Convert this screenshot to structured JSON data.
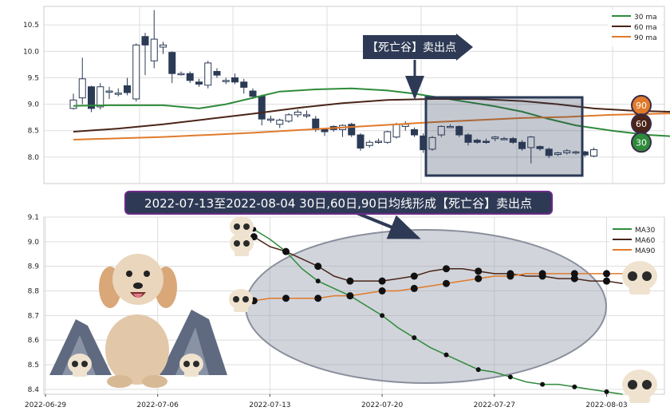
{
  "chart_data": [
    {
      "type": "candlestick",
      "ylim": [
        7.5,
        10.85
      ],
      "y_ticks": [
        "8.0",
        "8.5",
        "9.0",
        "9.5",
        "10.0",
        "10.5"
      ],
      "legend": {
        "placement": "top-right",
        "entries": [
          "30 ma",
          "60 ma",
          "90 ma"
        ]
      },
      "grid": true,
      "candles": [
        [
          8.92,
          9.08,
          8.9,
          9.2
        ],
        [
          9.12,
          9.48,
          9.0,
          9.88
        ],
        [
          9.33,
          8.92,
          8.85,
          9.35
        ],
        [
          8.95,
          9.33,
          8.9,
          9.4
        ],
        [
          9.25,
          9.25,
          9.1,
          9.33
        ],
        [
          9.21,
          9.21,
          9.15,
          9.3
        ],
        [
          9.35,
          9.22,
          9.17,
          9.5
        ],
        [
          9.1,
          10.12,
          9.05,
          10.15
        ],
        [
          10.28,
          10.12,
          9.55,
          10.35
        ],
        [
          9.82,
          10.23,
          9.68,
          10.78
        ],
        [
          10.08,
          10.12,
          9.95,
          10.18
        ],
        [
          9.98,
          9.58,
          9.4,
          10.0
        ],
        [
          9.58,
          9.58,
          9.54,
          9.62
        ],
        [
          9.58,
          9.45,
          9.4,
          9.62
        ],
        [
          9.42,
          9.38,
          9.33,
          9.48
        ],
        [
          9.36,
          9.78,
          9.3,
          9.82
        ],
        [
          9.62,
          9.55,
          9.5,
          9.68
        ],
        [
          9.45,
          9.45,
          9.38,
          9.5
        ],
        [
          9.5,
          9.42,
          9.38,
          9.58
        ],
        [
          9.42,
          9.32,
          9.2,
          9.48
        ],
        [
          9.25,
          9.15,
          9.1,
          9.3
        ],
        [
          9.15,
          8.72,
          8.6,
          9.18
        ],
        [
          8.72,
          8.72,
          8.65,
          8.78
        ],
        [
          8.62,
          8.7,
          8.55,
          8.73
        ],
        [
          8.68,
          8.8,
          8.65,
          8.83
        ],
        [
          8.8,
          8.85,
          8.75,
          8.9
        ],
        [
          8.8,
          8.8,
          8.74,
          8.88
        ],
        [
          8.72,
          8.52,
          8.48,
          8.78
        ],
        [
          8.52,
          8.48,
          8.4,
          8.55
        ],
        [
          8.58,
          8.52,
          8.48,
          8.6
        ],
        [
          8.52,
          8.6,
          8.38,
          8.62
        ],
        [
          8.62,
          8.42,
          8.38,
          8.65
        ],
        [
          8.42,
          8.17,
          8.12,
          8.45
        ],
        [
          8.22,
          8.28,
          8.18,
          8.32
        ],
        [
          8.28,
          8.3,
          8.25,
          8.35
        ],
        [
          8.28,
          8.48,
          8.25,
          8.5
        ],
        [
          8.38,
          8.62,
          8.35,
          8.65
        ],
        [
          8.58,
          8.62,
          8.5,
          8.68
        ],
        [
          8.52,
          8.42,
          8.38,
          8.56
        ],
        [
          8.4,
          8.14,
          8.08,
          8.45
        ],
        [
          8.15,
          8.37,
          8.12,
          8.4
        ],
        [
          8.42,
          8.58,
          8.38,
          8.6
        ],
        [
          8.58,
          8.58,
          8.55,
          8.62
        ],
        [
          8.58,
          8.42,
          8.38,
          8.6
        ],
        [
          8.42,
          8.28,
          8.22,
          8.45
        ],
        [
          8.32,
          8.28,
          8.25,
          8.35
        ],
        [
          8.3,
          8.28,
          8.25,
          8.35
        ],
        [
          8.35,
          8.38,
          8.3,
          8.4
        ],
        [
          8.35,
          8.35,
          8.32,
          8.38
        ],
        [
          8.35,
          8.28,
          8.25,
          8.38
        ],
        [
          8.28,
          8.16,
          8.12,
          8.32
        ],
        [
          8.18,
          8.38,
          7.88,
          8.4
        ],
        [
          8.2,
          8.16,
          8.12,
          8.22
        ],
        [
          8.15,
          8.03,
          7.98,
          8.18
        ],
        [
          8.05,
          8.08,
          8.02,
          8.1
        ],
        [
          8.08,
          8.12,
          8.05,
          8.15
        ],
        [
          8.1,
          8.1,
          8.05,
          8.12
        ],
        [
          8.1,
          8.04,
          8.0,
          8.12
        ],
        [
          8.02,
          8.14,
          8.0,
          8.18
        ]
      ],
      "series": [
        {
          "name": "30 ma",
          "color": "#2e8b3a",
          "values": [
            [
              0,
              8.97
            ],
            [
              4,
              8.98
            ],
            [
              8,
              8.98
            ],
            [
              10,
              8.98
            ],
            [
              14,
              8.92
            ],
            [
              17,
              9.0
            ],
            [
              20,
              9.12
            ],
            [
              23,
              9.24
            ],
            [
              27,
              9.28
            ],
            [
              31,
              9.3
            ],
            [
              35,
              9.26
            ],
            [
              38,
              9.2
            ],
            [
              41,
              9.12
            ],
            [
              44,
              9.04
            ],
            [
              47,
              8.96
            ],
            [
              50,
              8.86
            ],
            [
              53,
              8.72
            ],
            [
              56,
              8.6
            ],
            [
              60,
              8.5
            ],
            [
              64,
              8.42
            ],
            [
              68,
              8.38
            ],
            [
              72,
              8.35
            ],
            [
              74,
              8.33
            ],
            [
              76,
              8.32
            ]
          ]
        },
        {
          "name": "60 ma",
          "color": "#4a2518",
          "values": [
            [
              0,
              8.48
            ],
            [
              5,
              8.54
            ],
            [
              10,
              8.62
            ],
            [
              15,
              8.72
            ],
            [
              20,
              8.82
            ],
            [
              25,
              8.93
            ],
            [
              30,
              9.02
            ],
            [
              35,
              9.08
            ],
            [
              40,
              9.1
            ],
            [
              45,
              9.1
            ],
            [
              50,
              9.06
            ],
            [
              54,
              9.0
            ],
            [
              58,
              8.92
            ],
            [
              62,
              8.88
            ],
            [
              66,
              8.86
            ],
            [
              70,
              8.84
            ],
            [
              74,
              8.8
            ],
            [
              76,
              8.78
            ]
          ]
        },
        {
          "name": "90 ma",
          "color": "#e07a2a",
          "values": [
            [
              0,
              8.33
            ],
            [
              10,
              8.38
            ],
            [
              20,
              8.46
            ],
            [
              30,
              8.56
            ],
            [
              40,
              8.66
            ],
            [
              50,
              8.74
            ],
            [
              55,
              8.76
            ],
            [
              60,
              8.8
            ],
            [
              65,
              8.82
            ],
            [
              70,
              8.84
            ],
            [
              76,
              8.86
            ]
          ]
        }
      ],
      "end_badges": [
        {
          "label": "90",
          "value": 8.98,
          "color": "#e07a2a"
        },
        {
          "label": "60",
          "value": 8.63,
          "color": "#4a2518"
        },
        {
          "label": "30",
          "value": 8.28,
          "color": "#2e8b3a"
        }
      ],
      "annotation": "【死亡谷】卖出点"
    },
    {
      "type": "line",
      "title": "2022-07-13至2022-08-04 30日,60日,90日均线形成【死亡谷】卖出点",
      "ylim": [
        8.38,
        9.1
      ],
      "y_ticks": [
        "9.1",
        "9.0",
        "8.9",
        "8.8",
        "8.7",
        "8.6",
        "8.5",
        "8.4"
      ],
      "x_range": [
        "2022-06-29",
        "2022-08-05"
      ],
      "x_ticks": [
        "2022-06-29",
        "2022-07-06",
        "2022-07-13",
        "2022-07-20",
        "2022-07-27",
        "2022-08-03"
      ],
      "legend": {
        "placement": "top-right",
        "entries": [
          "MA30",
          "MA60",
          "MA90"
        ]
      },
      "grid": true,
      "x": [
        "2022-07-12",
        "2022-07-13",
        "2022-07-14",
        "2022-07-15",
        "2022-07-16",
        "2022-07-17",
        "2022-07-18",
        "2022-07-19",
        "2022-07-20",
        "2022-07-21",
        "2022-07-22",
        "2022-07-23",
        "2022-07-24",
        "2022-07-25",
        "2022-07-26",
        "2022-07-27",
        "2022-07-28",
        "2022-07-29",
        "2022-07-30",
        "2022-07-31",
        "2022-08-01",
        "2022-08-02",
        "2022-08-03",
        "2022-08-04"
      ],
      "series": [
        {
          "name": "MA30",
          "color": "#2e8b3a",
          "values": [
            9.05,
            9.01,
            8.96,
            8.89,
            8.84,
            8.81,
            8.78,
            8.74,
            8.7,
            8.65,
            8.61,
            8.57,
            8.54,
            8.51,
            8.48,
            8.47,
            8.45,
            8.43,
            8.42,
            8.42,
            8.41,
            8.4,
            8.39,
            8.38
          ]
        },
        {
          "name": "MA60",
          "color": "#4a2518",
          "values": [
            9.02,
            8.98,
            8.96,
            8.93,
            8.9,
            8.86,
            8.84,
            8.84,
            8.84,
            8.85,
            8.86,
            8.88,
            8.89,
            8.89,
            8.88,
            8.87,
            8.87,
            8.86,
            8.86,
            8.85,
            8.85,
            8.84,
            8.84,
            8.83
          ]
        },
        {
          "name": "MA90",
          "color": "#e07a2a",
          "values": [
            8.76,
            8.77,
            8.77,
            8.77,
            8.77,
            8.78,
            8.78,
            8.79,
            8.8,
            8.8,
            8.81,
            8.82,
            8.83,
            8.84,
            8.85,
            8.86,
            8.86,
            8.87,
            8.87,
            8.87,
            8.87,
            8.87,
            8.87,
            8.87
          ]
        }
      ]
    }
  ]
}
